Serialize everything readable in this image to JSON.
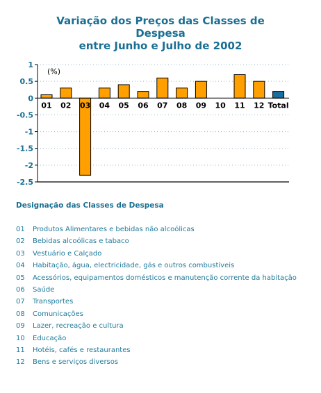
{
  "title_lines": [
    "Variação dos Preços das Classes de",
    "Despesa",
    "entre Junho e Julho de 2002"
  ],
  "chart_data": {
    "type": "bar",
    "title": "Variação dos Preços das Classes de Despesa entre Junho e Julho de 2002",
    "unit_label": "(%)",
    "categories": [
      "01",
      "02",
      "03",
      "04",
      "05",
      "06",
      "07",
      "08",
      "09",
      "10",
      "11",
      "12",
      "Total"
    ],
    "values": [
      0.1,
      0.3,
      -2.3,
      0.3,
      0.4,
      0.2,
      0.6,
      0.3,
      0.5,
      0.0,
      0.7,
      0.5,
      0.2
    ],
    "ylim": [
      -2.5,
      1
    ],
    "yticks": [
      1,
      0.5,
      0,
      -0.5,
      -1,
      -1.5,
      -2,
      -2.5
    ],
    "ytick_labels": [
      "1",
      "0.5",
      "0",
      "-0.5",
      "-1",
      "-1.5",
      "-2",
      "-2.5"
    ],
    "grid": true,
    "colors": {
      "bar": "#ffa000",
      "total_bar": "#1a6fa0",
      "bar_edge": "#000000",
      "axis_text": "#1a6f93",
      "grid": "#9ab8c8"
    }
  },
  "legend": {
    "heading": "Designação das Classes de Despesa",
    "items": [
      {
        "code": "01",
        "label": "Produtos Alimentares e bebidas não alcoólicas"
      },
      {
        "code": "02",
        "label": "Bebidas alcoólicas e tabaco"
      },
      {
        "code": "03",
        "label": "Vestuário e Calçado"
      },
      {
        "code": "04",
        "label": "Habitação, água, electricidade, gás e outros combustíveis"
      },
      {
        "code": "05",
        "label": "Acessórios, equipamentos domésticos e manutenção corrente da habitação"
      },
      {
        "code": "06",
        "label": "Saúde"
      },
      {
        "code": "07",
        "label": "Transportes"
      },
      {
        "code": "08",
        "label": "Comunicações"
      },
      {
        "code": "09",
        "label": "Lazer, recreação e cultura"
      },
      {
        "code": "10",
        "label": "Educação"
      },
      {
        "code": "11",
        "label": "Hotéis, cafés e restaurantes"
      },
      {
        "code": "12",
        "label": "Bens e serviços diversos"
      }
    ]
  }
}
